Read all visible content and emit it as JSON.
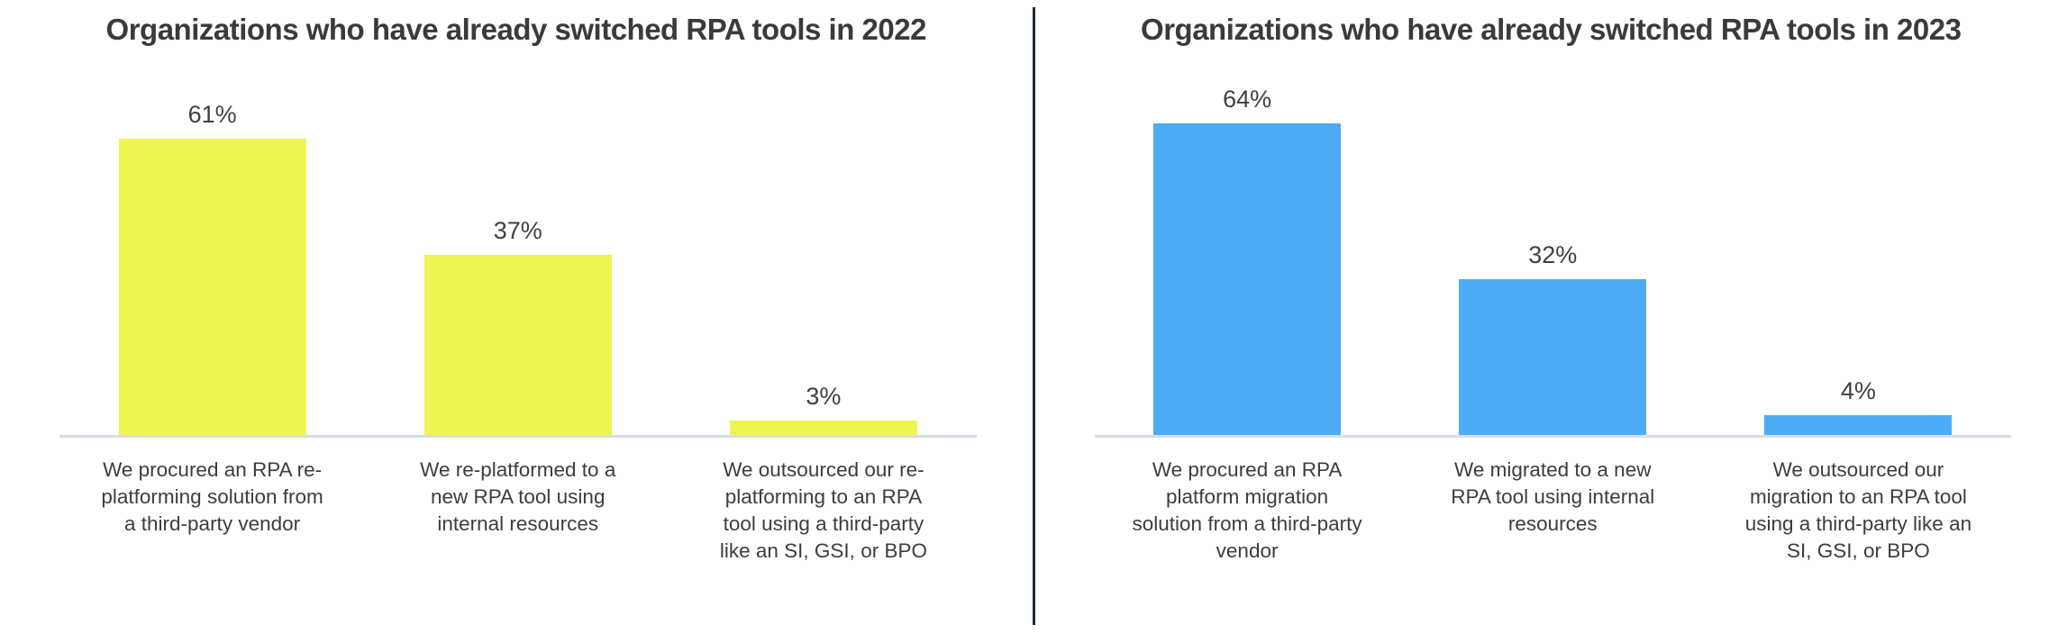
{
  "style": {
    "bar_color_2022": "#edf550",
    "bar_color_2023": "#4dacf5",
    "title_color": "#3a3a3a",
    "label_color": "#3d3d3d",
    "axis_line_color": "#d9dce3",
    "divider_color": "#1e2a3a",
    "background": "#ffffff"
  },
  "chart_data": [
    {
      "type": "bar",
      "title": "Organizations who have already switched RPA tools in 2022",
      "categories": [
        "We procured an RPA re-platforming solution from a third-party vendor",
        "We re-platformed to a new RPA tool using internal resources",
        "We outsourced our re-platforming to an RPA tool using a third-party like an SI, GSI, or BPO"
      ],
      "values": [
        61,
        37,
        3
      ],
      "value_labels": [
        "61%",
        "37%",
        "3%"
      ],
      "bar_color": "#edf550",
      "xlabel": "",
      "ylabel": "",
      "ylim": [
        0,
        70
      ],
      "grid": false,
      "legend_position": "none",
      "data_labels": "above bars, percent"
    },
    {
      "type": "bar",
      "title": "Organizations who have already switched RPA tools in 2023",
      "categories": [
        "We procured an RPA platform migration solution from a third-party vendor",
        "We migrated to a new RPA tool using internal resources",
        "We outsourced our migration to an RPA tool using a third-party like an SI, GSI, or BPO"
      ],
      "values": [
        64,
        32,
        4
      ],
      "value_labels": [
        "64%",
        "32%",
        "4%"
      ],
      "bar_color": "#4dacf5",
      "xlabel": "",
      "ylabel": "",
      "ylim": [
        0,
        70
      ],
      "grid": false,
      "legend_position": "none",
      "data_labels": "above bars, percent"
    }
  ]
}
